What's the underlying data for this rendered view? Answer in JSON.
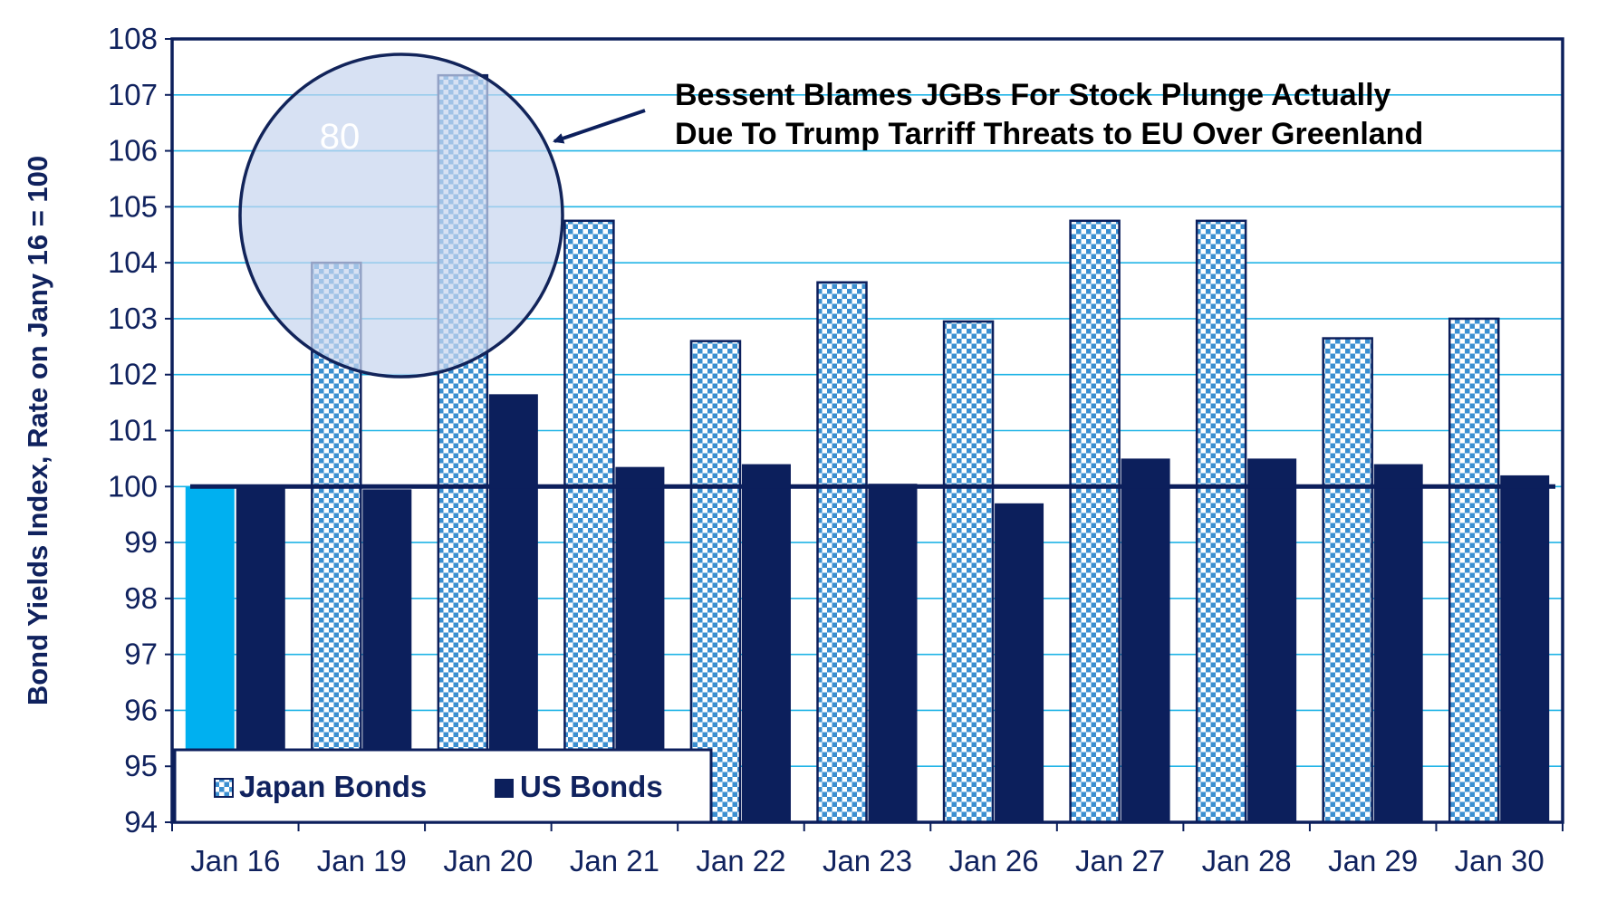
{
  "chart_data": {
    "type": "bar",
    "title": "",
    "xlabel": "",
    "ylabel": "Bond Yields Index, Rate on Jany 16 = 100",
    "ylim": [
      94,
      108
    ],
    "yticks": [
      "94",
      "95",
      "96",
      "97",
      "98",
      "99",
      "100",
      "101",
      "102",
      "103",
      "104",
      "105",
      "106",
      "107",
      "108"
    ],
    "categories": [
      "Jan 16",
      "Jan 19",
      "Jan 20",
      "Jan 21",
      "Jan 22",
      "Jan 23",
      "Jan 26",
      "Jan 27",
      "Jan 28",
      "Jan 29",
      "Jan 30"
    ],
    "series": [
      {
        "name": "Japan Bonds",
        "values": [
          100,
          104.0,
          107.35,
          104.75,
          102.6,
          103.65,
          102.95,
          104.75,
          104.75,
          102.65,
          103.0
        ]
      },
      {
        "name": "US Bonds",
        "values": [
          100,
          99.95,
          101.65,
          100.35,
          100.4,
          100.05,
          99.7,
          100.5,
          100.5,
          100.4,
          100.2
        ]
      }
    ],
    "reference_line": 100,
    "grid": true,
    "legend_position": "bottom-left",
    "annotation": {
      "lines": [
        "Bessent Blames JGBs For Stock Plunge Actually",
        "Due To Trump Tarriff Threats to EU Over Greenland"
      ],
      "circle_label": "80"
    }
  },
  "colors": {
    "navy": "#0c1f5c",
    "japan_pattern": "#3b8fd0",
    "first_bar": "#00b0f0",
    "grid": "#20b4e6",
    "circle_fill": "#c7d5ee",
    "circle_stroke": "#12245a",
    "text": "#10225e"
  }
}
